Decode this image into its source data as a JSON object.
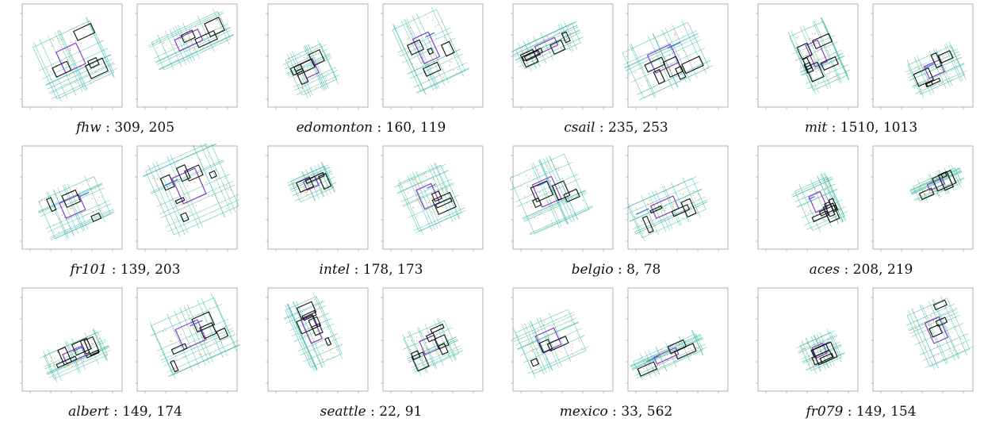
{
  "figure": {
    "panels": [
      {
        "name": "fhw",
        "values": "309, 205"
      },
      {
        "name": "edomonton",
        "values": "160, 119"
      },
      {
        "name": "csail",
        "values": "235, 253"
      },
      {
        "name": "mit",
        "values": "1510, 1013"
      },
      {
        "name": "fr101",
        "values": "139, 203"
      },
      {
        "name": "intel",
        "values": "178, 173"
      },
      {
        "name": "belgio",
        "values": "8, 78"
      },
      {
        "name": "aces",
        "values": "208, 219"
      },
      {
        "name": "albert",
        "values": "149, 174"
      },
      {
        "name": "seattle",
        "values": "22, 91"
      },
      {
        "name": "mexico",
        "values": "33, 562"
      },
      {
        "name": "fr079",
        "values": "149, 154"
      }
    ],
    "colors": {
      "frame": "#7f7f7f",
      "grid": "#3cb8a8",
      "points": "#d29a20",
      "boxes": "#111111",
      "region": "#8a3fc8",
      "highlight": "#2d6fd6"
    }
  }
}
